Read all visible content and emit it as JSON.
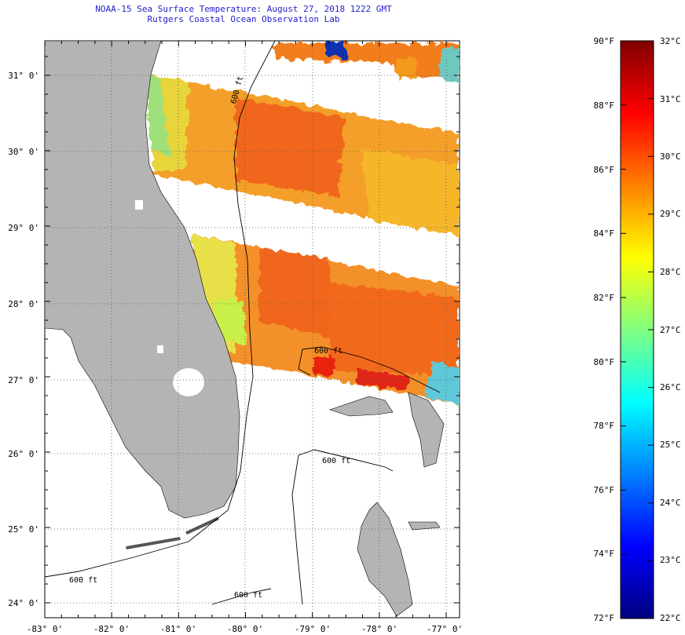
{
  "header": {
    "title": "NOAA-15 Sea Surface Temperature:  August 27, 2018 1222 GMT",
    "subtitle": "Rutgers Coastal Ocean Observation Lab"
  },
  "map": {
    "lat_labels": [
      "31° 0'",
      "30° 0'",
      "29° 0'",
      "28° 0'",
      "27° 0'",
      "26° 0'",
      "25° 0'",
      "24° 0'"
    ],
    "lon_labels": [
      "-83° 0'",
      "-82° 0'",
      "-81° 0'",
      "-80° 0'",
      "-79° 0'",
      "-78° 0'",
      "-77° 0'"
    ],
    "contour_labels": [
      "600 ft",
      "600 ft",
      "600 ft",
      "600 ft",
      "600 ft"
    ],
    "land_color": "#b4b4b4",
    "contour_color": "#000000",
    "graticule_color": "#555555"
  },
  "colorbar": {
    "f_labels": [
      "90°F",
      "88°F",
      "86°F",
      "84°F",
      "82°F",
      "80°F",
      "78°F",
      "76°F",
      "74°F",
      "72°F"
    ],
    "c_labels": [
      "32°C",
      "31°C",
      "30°C",
      "29°C",
      "28°C",
      "27°C",
      "26°C",
      "25°C",
      "24°C",
      "23°C",
      "22°C"
    ],
    "stops": [
      "#00007f",
      "#0000ff",
      "#0080ff",
      "#00ffff",
      "#80ff80",
      "#ffff00",
      "#ff8000",
      "#ff0000",
      "#7f0000"
    ]
  }
}
